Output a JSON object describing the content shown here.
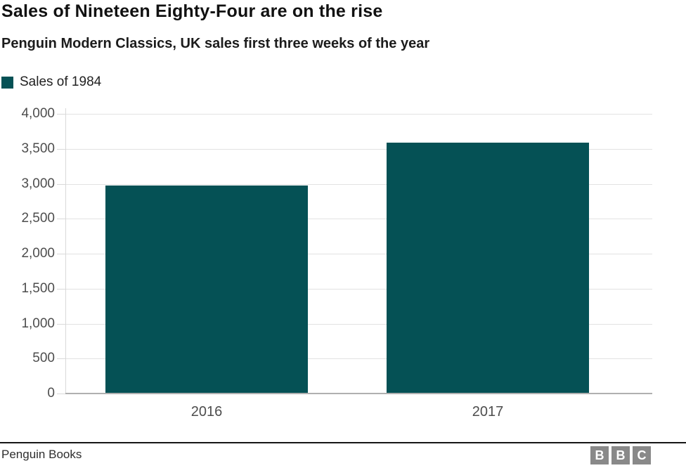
{
  "header": {
    "title": "Sales of Nineteen Eighty-Four are on the rise",
    "subtitle": "Penguin Modern Classics, UK sales first three weeks of the year"
  },
  "legend": {
    "label": "Sales of 1984",
    "swatch_color": "#055155"
  },
  "chart_data": {
    "type": "bar",
    "title": "Sales of Nineteen Eighty-Four are on the rise",
    "subtitle": "Penguin Modern Classics, UK sales first three weeks of the year",
    "categories": [
      "2016",
      "2017"
    ],
    "series": [
      {
        "name": "Sales of 1984",
        "values": [
          2970,
          3590
        ],
        "color": "#055155"
      }
    ],
    "xlabel": "",
    "ylabel": "",
    "ylim": [
      0,
      4000
    ],
    "yticks": [
      0,
      500,
      1000,
      1500,
      2000,
      2500,
      3000,
      3500,
      4000
    ],
    "ytick_labels": [
      "0",
      "500",
      "1,000",
      "1,500",
      "2,000",
      "2,500",
      "3,000",
      "3,500",
      "4,000"
    ],
    "grid": "horizontal",
    "legend_position": "top-left"
  },
  "footer": {
    "source": "Penguin Books",
    "logo_letters": [
      "B",
      "B",
      "C"
    ]
  },
  "colors": {
    "bar": "#055155",
    "gridline": "#e2e2e2",
    "axis_line": "#b0b0b0",
    "footer_rule": "#161616",
    "logo_gray": "#898989",
    "title_text": "#111111",
    "axis_text": "#4d4d4d"
  }
}
